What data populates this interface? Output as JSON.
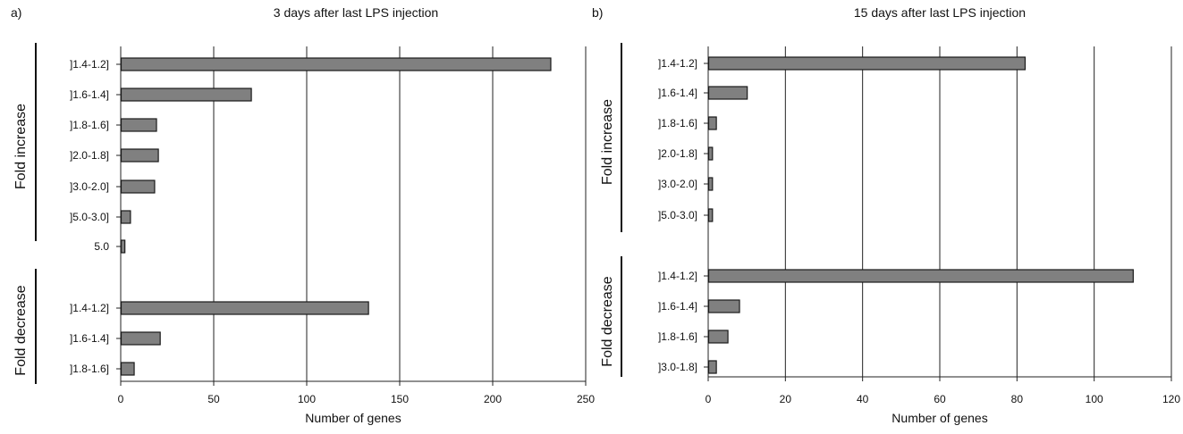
{
  "chart_data": [
    {
      "type": "bar",
      "orientation": "horizontal",
      "panel_label": "a)",
      "title": "3 days after last LPS injection",
      "xlabel": "Number of genes",
      "xlim": [
        0,
        250
      ],
      "xticks": [
        0,
        50,
        100,
        150,
        200,
        250
      ],
      "grid": "vertical",
      "groups": [
        {
          "label": "Fold increase",
          "categories": [
            "]1.4-1.2]",
            "]1.6-1.4]",
            "]1.8-1.6]",
            "]2.0-1.8]",
            "]3.0-2.0]",
            "]5.0-3.0]",
            "5.0"
          ],
          "values": [
            231,
            70,
            19,
            20,
            18,
            5,
            2
          ]
        },
        {
          "label": "Fold decrease",
          "categories": [
            "]1.4-1.2]",
            "]1.6-1.4]",
            "]1.8-1.6]"
          ],
          "values": [
            133,
            21,
            7
          ]
        }
      ]
    },
    {
      "type": "bar",
      "orientation": "horizontal",
      "panel_label": "b)",
      "title": "15 days after last LPS injection",
      "xlabel": "Number of genes",
      "xlim": [
        0,
        120
      ],
      "xticks": [
        0,
        20,
        40,
        60,
        80,
        100,
        120
      ],
      "grid": "vertical",
      "groups": [
        {
          "label": "Fold increase",
          "categories": [
            "]1.4-1.2]",
            "]1.6-1.4]",
            "]1.8-1.6]",
            "]2.0-1.8]",
            "]3.0-2.0]",
            "]5.0-3.0]"
          ],
          "values": [
            82,
            10,
            2,
            1,
            1,
            1
          ]
        },
        {
          "label": "Fold decrease",
          "categories": [
            "]1.4-1.2]",
            "]1.6-1.4]",
            "]1.8-1.6]",
            "]3.0-1.8]"
          ],
          "values": [
            110,
            8,
            5,
            2
          ]
        }
      ]
    }
  ],
  "colors": {
    "bar_fill": "#808080",
    "bar_stroke": "#1a1a1a",
    "grid": "#222222",
    "bracket": "#111111"
  }
}
